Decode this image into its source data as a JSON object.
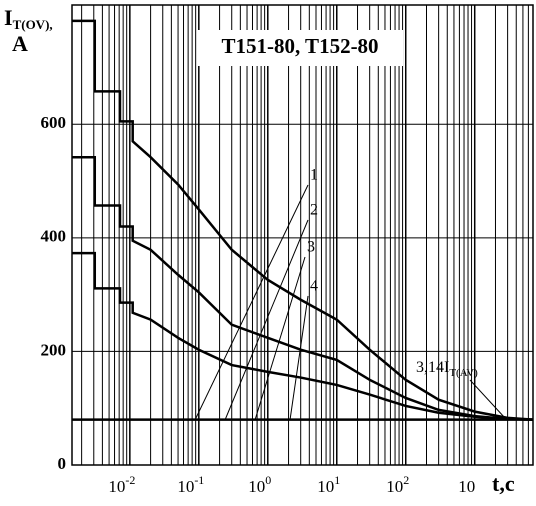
{
  "chart_data": {
    "type": "line",
    "title": "T151-80, T152-80",
    "y_label": {
      "main": "I",
      "sub": "T(OV),",
      "unit": "A"
    },
    "x_label": "t,c",
    "log_x": true,
    "grid": true,
    "xlim": [
      0.00145,
      7000
    ],
    "ylim": [
      0,
      810
    ],
    "yticks": [
      0,
      200,
      400,
      600
    ],
    "xticks": [
      {
        "value": 0.01,
        "label": "10",
        "exponent": "-2"
      },
      {
        "value": 0.1,
        "label": "10",
        "exponent": "-1"
      },
      {
        "value": 1,
        "label": "10",
        "exponent": "0"
      },
      {
        "value": 10,
        "label": "10",
        "exponent": "1"
      },
      {
        "value": 100,
        "label": "10",
        "exponent": "2"
      },
      {
        "value": 1000,
        "label": "10"
      }
    ],
    "series": [
      {
        "color": "#000000",
        "x": [
          0.00145,
          0.0031,
          0.0031,
          0.0072,
          0.0072,
          0.011,
          0.011,
          0.02,
          0.05,
          0.1,
          0.3,
          1,
          3,
          10,
          30,
          100,
          300,
          1000,
          3000,
          7000
        ],
        "values": [
          782,
          782,
          658,
          658,
          605,
          605,
          570,
          542,
          494,
          450,
          379,
          326,
          291,
          256,
          203,
          150,
          115,
          94,
          83,
          80
        ]
      },
      {
        "color": "#000000",
        "x": [
          0.00145,
          0.0031,
          0.0031,
          0.0072,
          0.0072,
          0.011,
          0.011,
          0.02,
          0.05,
          0.1,
          0.3,
          1,
          3,
          10,
          30,
          100,
          300,
          1000,
          3000,
          7000
        ],
        "values": [
          542,
          542,
          457,
          457,
          420,
          420,
          395,
          379,
          335,
          304,
          247,
          224,
          203,
          185,
          150,
          118,
          97,
          86,
          81,
          80
        ]
      },
      {
        "color": "#000000",
        "x": [
          0.00145,
          0.0031,
          0.0031,
          0.0072,
          0.0072,
          0.011,
          0.011,
          0.02,
          0.05,
          0.1,
          0.3,
          1,
          3,
          10,
          30,
          100,
          300,
          1000,
          3000,
          7000
        ],
        "values": [
          373,
          373,
          311,
          311,
          286,
          286,
          268,
          256,
          224,
          203,
          176,
          164,
          154,
          141,
          124,
          104,
          92,
          85,
          81,
          80
        ]
      },
      {
        "color": "#000000",
        "x": [
          0.00145,
          7000
        ],
        "values": [
          80,
          80
        ]
      }
    ],
    "annotations": [
      "1",
      "2",
      "3",
      "4"
    ],
    "baseline_label": {
      "main": "3,14I",
      "sub": "T(AV)"
    }
  }
}
